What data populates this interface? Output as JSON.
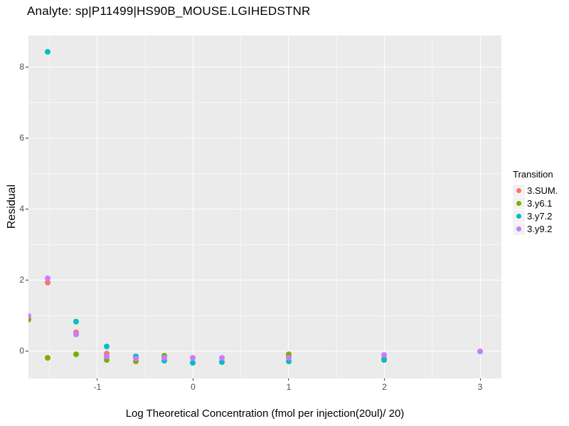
{
  "chart_data": {
    "type": "scatter",
    "title": "Analyte: sp|P11499|HS90B_MOUSE.LGIHEDSTNR",
    "xlabel": "Log Theoretical Concentration (fmol per injection(20ul)/ 20)",
    "ylabel": "Residual",
    "legend_title": "Transition",
    "legend_position": "right",
    "grid": true,
    "panel_bg": "#EBEBEB",
    "xlim": [
      -1.721,
      3.223
    ],
    "ylim": [
      -0.78,
      8.88
    ],
    "x_ticks": [
      -1,
      0,
      1,
      2,
      3
    ],
    "y_ticks": [
      0,
      2,
      4,
      6,
      8
    ],
    "x_minor": [
      -1.5,
      -0.5,
      0.5,
      1.5,
      2.5
    ],
    "y_minor": [
      1,
      3,
      5,
      7
    ],
    "series": [
      {
        "name": "3.SUM.",
        "color": "#F8766D",
        "points": [
          [
            -1.52,
            1.93
          ],
          [
            -1.22,
            0.53
          ],
          [
            -0.9,
            -0.07
          ],
          [
            1,
            -0.14
          ],
          [
            2,
            -0.21
          ]
        ]
      },
      {
        "name": "3.y6.1",
        "color": "#7CAE00",
        "points": [
          [
            -1.72,
            0.88
          ],
          [
            -1.52,
            -0.19
          ],
          [
            -1.22,
            -0.09
          ],
          [
            -0.9,
            -0.25
          ],
          [
            -0.6,
            -0.3
          ],
          [
            -0.3,
            -0.13
          ],
          [
            1,
            -0.1
          ]
        ]
      },
      {
        "name": "3.y7.2",
        "color": "#00BFC4",
        "points": [
          [
            -1.52,
            8.42
          ],
          [
            -1.22,
            0.82
          ],
          [
            -0.9,
            0.13
          ],
          [
            -0.6,
            -0.15
          ],
          [
            -0.3,
            -0.27
          ],
          [
            0,
            -0.33
          ],
          [
            0.3,
            -0.31
          ],
          [
            1,
            -0.29
          ],
          [
            2,
            -0.26
          ]
        ]
      },
      {
        "name": "3.y9.2",
        "color": "#C77CFF",
        "points": [
          [
            -1.72,
            0.98
          ],
          [
            -1.52,
            2.05
          ],
          [
            -1.22,
            0.47
          ],
          [
            -0.9,
            -0.15
          ],
          [
            -0.6,
            -0.22
          ],
          [
            -0.3,
            -0.2
          ],
          [
            0,
            -0.2
          ],
          [
            0.3,
            -0.19
          ],
          [
            1,
            -0.19
          ],
          [
            2,
            -0.11
          ],
          [
            3,
            -0.02
          ]
        ]
      }
    ]
  }
}
